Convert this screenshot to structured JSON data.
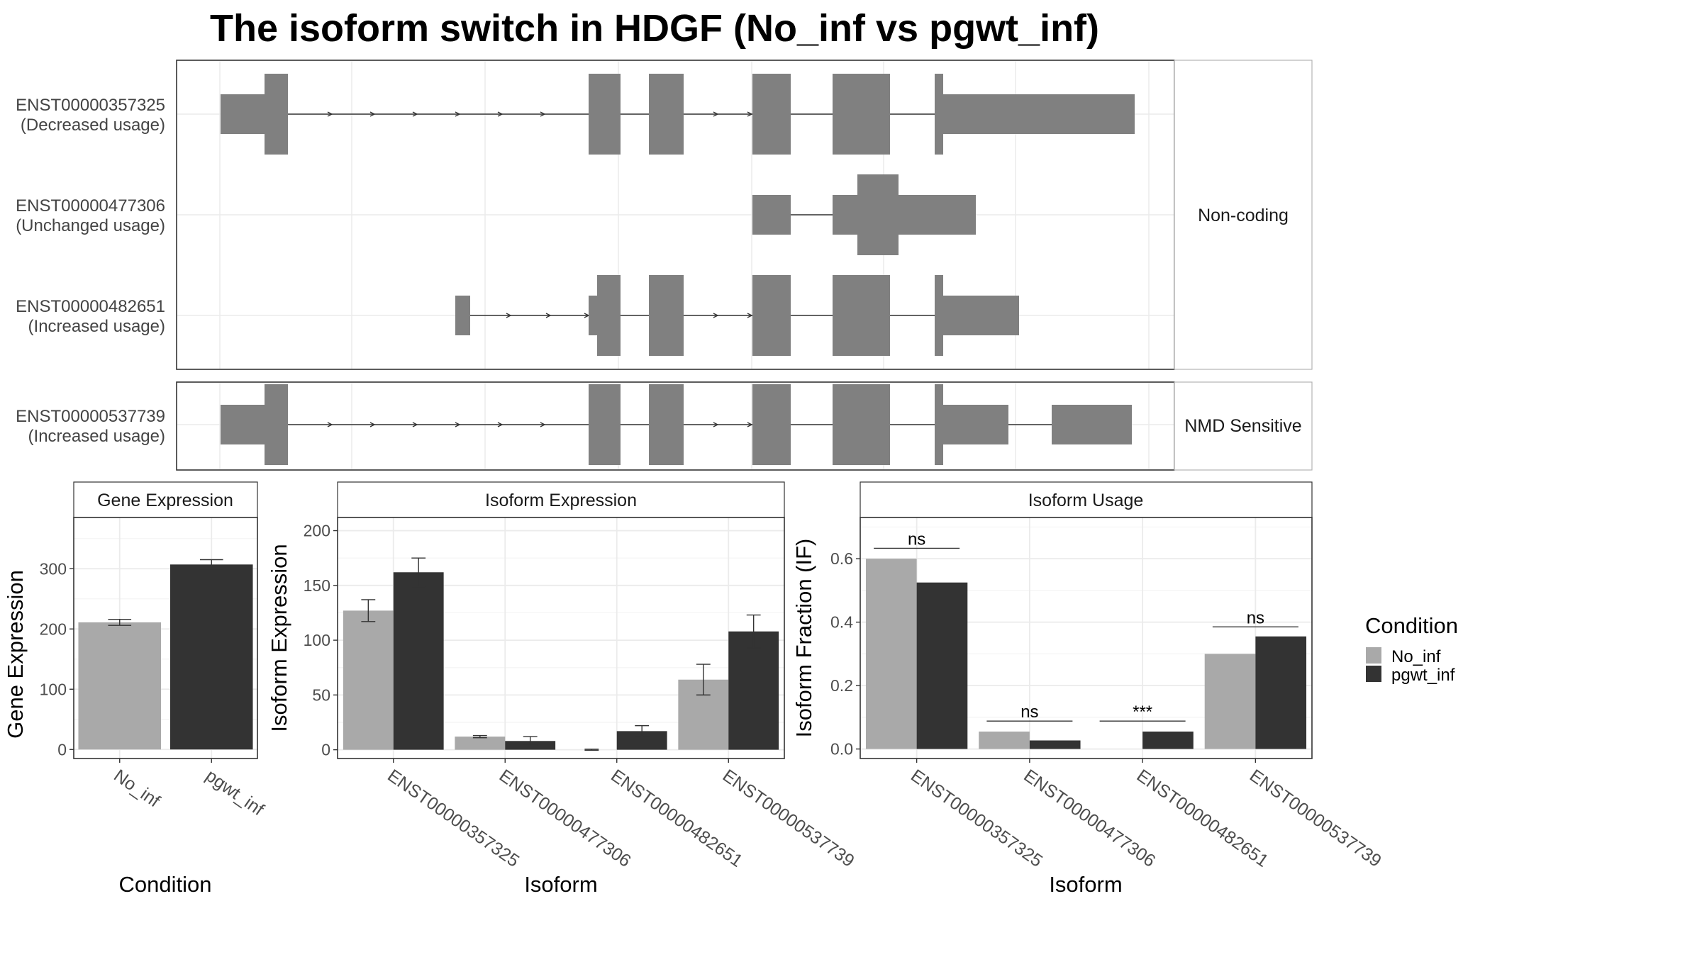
{
  "title": "The isoform switch in HDGF (No_inf vs pgwt_inf)",
  "colors": {
    "No_inf": "#a9a9a9",
    "pgwt_inf": "#333333",
    "exon": "#808080",
    "grid": "#ebebeb"
  },
  "structure": {
    "panels": [
      {
        "strip": "Non-coding",
        "transcripts": [
          {
            "id": "ENST00000357325",
            "usage": "(Decreased usage)"
          },
          {
            "id": "ENST00000477306",
            "usage": "(Unchanged usage)"
          },
          {
            "id": "ENST00000482651",
            "usage": "(Increased usage)"
          }
        ]
      },
      {
        "strip": "NMD Sensitive",
        "transcripts": [
          {
            "id": "ENST00000537739",
            "usage": "(Increased usage)"
          }
        ]
      }
    ]
  },
  "chart_data": [
    {
      "type": "bar",
      "title": "Gene Expression",
      "xlabel": "Condition",
      "ylabel": "Gene Expression",
      "categories": [
        "No_inf",
        "pgwt_inf"
      ],
      "values": [
        211,
        307
      ],
      "errors": [
        5,
        8
      ],
      "ylim": [
        -15,
        385
      ],
      "yticks": [
        0,
        100,
        200,
        300
      ],
      "grid": true
    },
    {
      "type": "bar",
      "title": "Isoform Expression",
      "xlabel": "Isoform",
      "ylabel": "Isoform Expression",
      "categories": [
        "ENST00000357325",
        "ENST00000477306",
        "ENST00000482651",
        "ENST00000537739"
      ],
      "series": [
        {
          "name": "No_inf",
          "values": [
            127,
            12,
            0,
            64
          ],
          "errors": [
            10,
            1,
            0.5,
            14
          ]
        },
        {
          "name": "pgwt_inf",
          "values": [
            162,
            8,
            17,
            108
          ],
          "errors": [
            13,
            4,
            5,
            15
          ]
        }
      ],
      "ylim": [
        -8,
        212
      ],
      "yticks": [
        0,
        50,
        100,
        150,
        200
      ],
      "grid": true
    },
    {
      "type": "bar",
      "title": "Isoform Usage",
      "xlabel": "Isoform",
      "ylabel": "Isoform Fraction (IF)",
      "categories": [
        "ENST00000357325",
        "ENST00000477306",
        "ENST00000482651",
        "ENST00000537739"
      ],
      "series": [
        {
          "name": "No_inf",
          "values": [
            0.6,
            0.055,
            0.0,
            0.3
          ]
        },
        {
          "name": "pgwt_inf",
          "values": [
            0.525,
            0.027,
            0.055,
            0.355
          ]
        }
      ],
      "significance": [
        "ns",
        "ns",
        "***",
        "ns"
      ],
      "significance_level": [
        0.633,
        0.088,
        0.088,
        0.385
      ],
      "ylim": [
        -0.03,
        0.73
      ],
      "yticks": [
        0.0,
        0.2,
        0.4,
        0.6
      ],
      "grid": true
    }
  ],
  "legend": {
    "title": "Condition",
    "items": [
      "No_inf",
      "pgwt_inf"
    ],
    "placement": "right"
  }
}
